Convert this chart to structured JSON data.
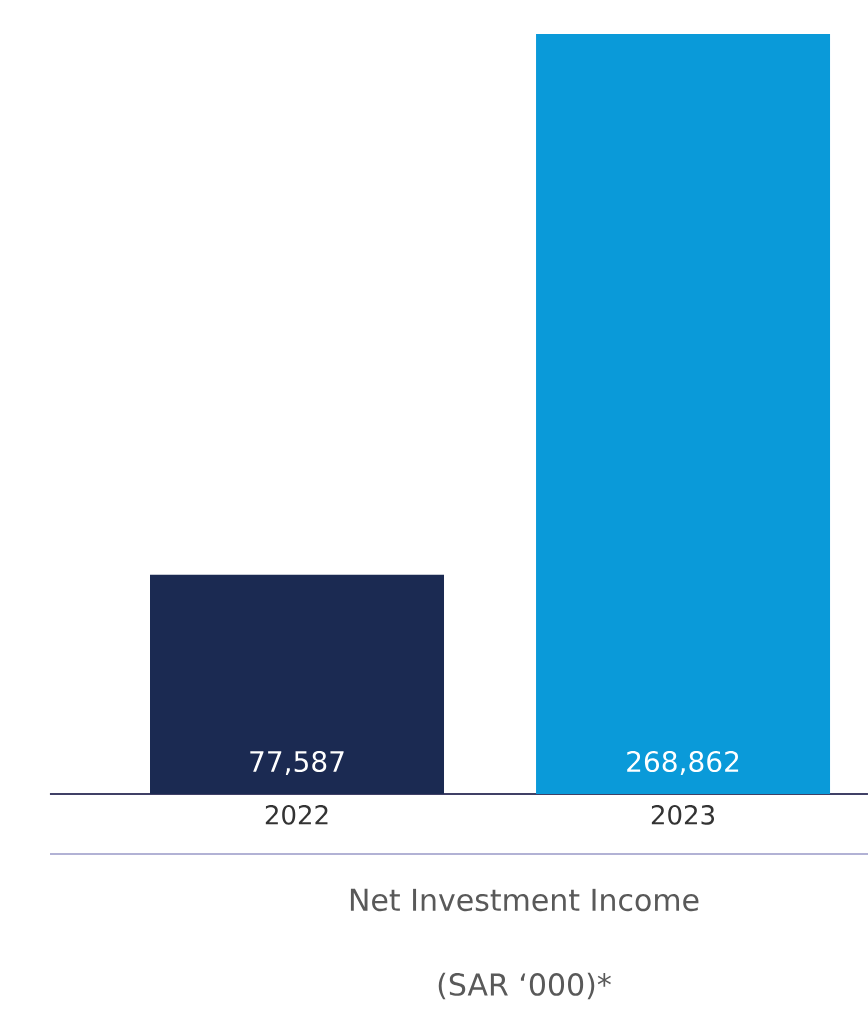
{
  "chart_data": {
    "type": "bar",
    "categories": [
      "2022",
      "2023"
    ],
    "values": [
      77587,
      268862
    ],
    "colors": [
      "#1b2a52",
      "#0a9ad9"
    ],
    "value_labels": [
      "77,587",
      "268,862"
    ],
    "xlabel": "Net Investment Income",
    "annotations": [
      "(SAR ‘000)*"
    ]
  }
}
